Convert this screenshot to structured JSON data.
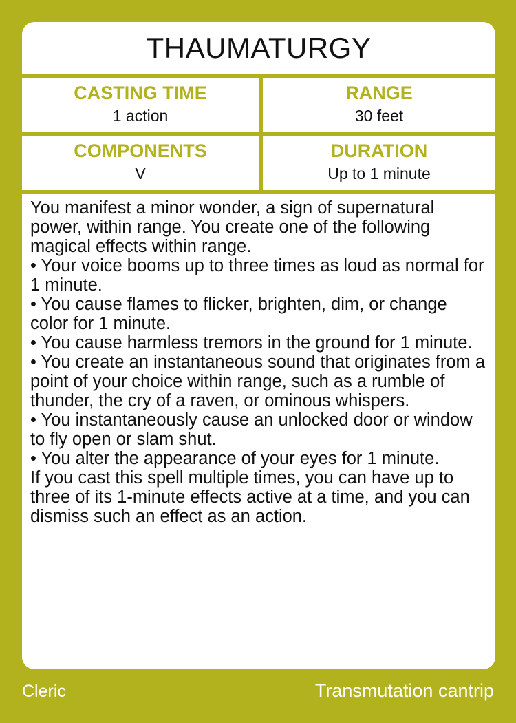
{
  "card": {
    "title": "THAUMATURGY",
    "stats": {
      "casting_time": {
        "label": "CASTING TIME",
        "value": "1 action"
      },
      "range": {
        "label": "RANGE",
        "value": "30 feet"
      },
      "components": {
        "label": "COMPONENTS",
        "value": "V"
      },
      "duration": {
        "label": "DURATION",
        "value": "Up to 1 minute"
      }
    },
    "description": [
      "You manifest a minor wonder, a sign of supernatural power, within range. You create one of the following magical effects within range.",
      "• Your voice booms up to three times as loud as normal for 1 minute.",
      "• You cause flames to flicker, brighten, dim, or change color for 1 minute.",
      "• You cause harmless tremors in the ground for 1 minute.",
      "• You create an instantaneous sound that originates from a point of your choice within range, such as a rumble of thunder, the cry of a raven, or ominous whispers.",
      "• You instantaneously cause an unlocked door or window to fly open or slam shut.",
      "• You alter the appearance of your eyes for 1 minute.",
      "If you cast this spell multiple times, you can have up to three of its 1-minute effects active at a time, and you can dismiss such an effect as an action."
    ],
    "class": "Cleric",
    "school_level": "Transmutation cantrip",
    "colors": {
      "accent": "#b2b21e",
      "panel": "#ffffff",
      "text": "#111111"
    }
  }
}
